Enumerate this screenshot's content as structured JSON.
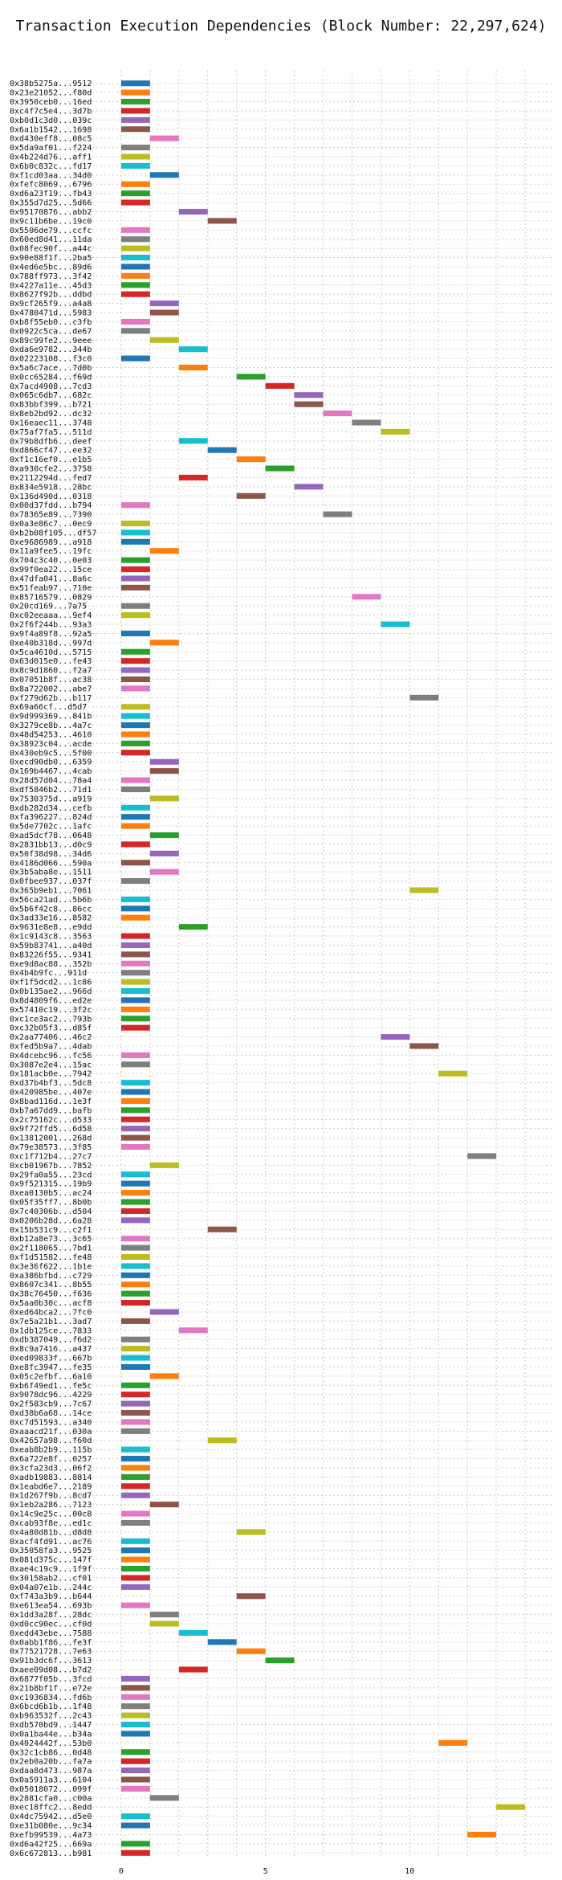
{
  "chart_data": {
    "type": "gantt",
    "title": "Transaction Execution Dependencies (Block Number: 22,297,624)",
    "xlabel": "",
    "ylabel": "",
    "xlim": [
      -1,
      15
    ],
    "xticks": [
      0,
      5,
      10
    ],
    "grid": true,
    "colors": [
      "#1f77b4",
      "#ff7f0e",
      "#2ca02c",
      "#d62728",
      "#9467bd",
      "#8c564b",
      "#e377c2",
      "#7f7f7f",
      "#bcbd22",
      "#17becf"
    ],
    "transactions": [
      {
        "label": "0x38b5275a...9512",
        "start": 0
      },
      {
        "label": "0x23e21052...f80d",
        "start": 0
      },
      {
        "label": "0x3950ceb0...16ed",
        "start": 0
      },
      {
        "label": "0xc4f7c5e4...3d7b",
        "start": 0
      },
      {
        "label": "0xb0d1c3d0...039c",
        "start": 0
      },
      {
        "label": "0x6a1b1542...1698",
        "start": 0
      },
      {
        "label": "0xd430eff8...08c5",
        "start": 1
      },
      {
        "label": "0x5da9af01...f224",
        "start": 0
      },
      {
        "label": "0x4b224d76...aff1",
        "start": 0
      },
      {
        "label": "0x6b0c832c...fd17",
        "start": 0
      },
      {
        "label": "0xf1cd03aa...34d0",
        "start": 1
      },
      {
        "label": "0xfefc8069...6796",
        "start": 0
      },
      {
        "label": "0xd6a23f19...fb43",
        "start": 0
      },
      {
        "label": "0x355d7d25...5d66",
        "start": 0
      },
      {
        "label": "0x95170876...abb2",
        "start": 2
      },
      {
        "label": "0x9c11b6be...19c0",
        "start": 3
      },
      {
        "label": "0x5506de79...ccfc",
        "start": 0
      },
      {
        "label": "0x60ed8d41...11da",
        "start": 0
      },
      {
        "label": "0x08fec90f...a44c",
        "start": 0
      },
      {
        "label": "0x90e88f1f...2ba5",
        "start": 0
      },
      {
        "label": "0x4ed6e5bc...89d6",
        "start": 0
      },
      {
        "label": "0x788ff973...3f42",
        "start": 0
      },
      {
        "label": "0x4227a11e...45d3",
        "start": 0
      },
      {
        "label": "0x8627f92b...ddbd",
        "start": 0
      },
      {
        "label": "0x9cf265f9...a4a8",
        "start": 1
      },
      {
        "label": "0x4780471d...5983",
        "start": 1
      },
      {
        "label": "0xb8f55eb0...c3fb",
        "start": 0
      },
      {
        "label": "0x0922c5ca...de67",
        "start": 0
      },
      {
        "label": "0x89c99fe2...9eee",
        "start": 1
      },
      {
        "label": "0xda6e9782...344b",
        "start": 2
      },
      {
        "label": "0x02223108...f3c0",
        "start": 0
      },
      {
        "label": "0x5a6c7ace...7d0b",
        "start": 2
      },
      {
        "label": "0x0cc65284...f69d",
        "start": 4
      },
      {
        "label": "0x7acd4908...7cd3",
        "start": 5
      },
      {
        "label": "0x065c6db7...682c",
        "start": 6
      },
      {
        "label": "0x83bbf399...b721",
        "start": 6
      },
      {
        "label": "0x8eb2bd92...dc32",
        "start": 7
      },
      {
        "label": "0x16eaec11...3748",
        "start": 8
      },
      {
        "label": "0x75af7fa5...511d",
        "start": 9
      },
      {
        "label": "0x79b8dfb6...deef",
        "start": 2
      },
      {
        "label": "0xd866cf47...ee32",
        "start": 3
      },
      {
        "label": "0xf1c16ef0...e1b5",
        "start": 4
      },
      {
        "label": "0xa930cfe2...3758",
        "start": 5
      },
      {
        "label": "0x2112294d...fed7",
        "start": 2
      },
      {
        "label": "0x834e5918...28bc",
        "start": 6
      },
      {
        "label": "0x136d490d...0318",
        "start": 4
      },
      {
        "label": "0x00d37fdd...b794",
        "start": 0
      },
      {
        "label": "0x78365e89...7390",
        "start": 7
      },
      {
        "label": "0x0a3e86c7...0ec9",
        "start": 0
      },
      {
        "label": "0xb2b08f105...df57",
        "start": 0
      },
      {
        "label": "0xe9686989...a918",
        "start": 0
      },
      {
        "label": "0x11a9fee5...19fc",
        "start": 1
      },
      {
        "label": "0x704c3c40...0e03",
        "start": 0
      },
      {
        "label": "0x99f0ea22...15ce",
        "start": 0
      },
      {
        "label": "0x47dfa041...8a6c",
        "start": 0
      },
      {
        "label": "0x51feab97...710e",
        "start": 0
      },
      {
        "label": "0x85716579...0829",
        "start": 8
      },
      {
        "label": "0x20cd169...7a75",
        "start": 0
      },
      {
        "label": "0xc02eeaaa...9ef4",
        "start": 0
      },
      {
        "label": "0x2f6f244b...93a3",
        "start": 9
      },
      {
        "label": "0x9f4a89f8...92a5",
        "start": 0
      },
      {
        "label": "0xe40b318d...997d",
        "start": 1
      },
      {
        "label": "0x5ca4610d...5715",
        "start": 0
      },
      {
        "label": "0x63d015e0...fe43",
        "start": 0
      },
      {
        "label": "0x8c9d1860...f2a7",
        "start": 0
      },
      {
        "label": "0x07051b8f...ac38",
        "start": 0
      },
      {
        "label": "0x8a722002...abe7",
        "start": 0
      },
      {
        "label": "0xf279d62b...b117",
        "start": 10
      },
      {
        "label": "0x69a66cf...d5d7",
        "start": 0
      },
      {
        "label": "0x9d999369...841b",
        "start": 0
      },
      {
        "label": "0x3279ce8b...4a7c",
        "start": 0
      },
      {
        "label": "0x48d54253...4610",
        "start": 0
      },
      {
        "label": "0x38923c04...acde",
        "start": 0
      },
      {
        "label": "0x430eb9c5...5f00",
        "start": 0
      },
      {
        "label": "0xecd90db0...6359",
        "start": 1
      },
      {
        "label": "0x169b4467...4cab",
        "start": 1
      },
      {
        "label": "0x28d57d04...78a4",
        "start": 0
      },
      {
        "label": "0xdf5846b2...71d1",
        "start": 0
      },
      {
        "label": "0x7530375d...a919",
        "start": 1
      },
      {
        "label": "0xdb282d34...cefb",
        "start": 0
      },
      {
        "label": "0xfa396227...824d",
        "start": 0
      },
      {
        "label": "0x5de7702c...1afc",
        "start": 0
      },
      {
        "label": "0xad5dcf78...0648",
        "start": 1
      },
      {
        "label": "0x2831bb13...d0c9",
        "start": 0
      },
      {
        "label": "0x50f38d98...34d6",
        "start": 1
      },
      {
        "label": "0x4186d066...590a",
        "start": 0
      },
      {
        "label": "0x3b5aba8e...1511",
        "start": 1
      },
      {
        "label": "0x0fbee937...037f",
        "start": 0
      },
      {
        "label": "0x365b9eb1...7061",
        "start": 10
      },
      {
        "label": "0x56ca21ad...5b6b",
        "start": 0
      },
      {
        "label": "0x5b6f42c8...86cc",
        "start": 0
      },
      {
        "label": "0x3ad33e16...8582",
        "start": 0
      },
      {
        "label": "0x9631e8e8...e9dd",
        "start": 2
      },
      {
        "label": "0x1c9143c8...3563",
        "start": 0
      },
      {
        "label": "0x59b83741...a40d",
        "start": 0
      },
      {
        "label": "0x83226f55...9341",
        "start": 0
      },
      {
        "label": "0xe9d8ac88...352b",
        "start": 0
      },
      {
        "label": "0x4b4b9fc...911d",
        "start": 0
      },
      {
        "label": "0xf1f5dcd2...1c86",
        "start": 0
      },
      {
        "label": "0x0b135ae2...966d",
        "start": 0
      },
      {
        "label": "0x8d4809f6...ed2e",
        "start": 0
      },
      {
        "label": "0x57410c19...3f2c",
        "start": 0
      },
      {
        "label": "0xc1ce3ac2...793b",
        "start": 0
      },
      {
        "label": "0xc32b05f3...d85f",
        "start": 0
      },
      {
        "label": "0x2aa77406...46c2",
        "start": 9
      },
      {
        "label": "0xfed5b9a7...4dab",
        "start": 10
      },
      {
        "label": "0x4dcebc96...fc56",
        "start": 0
      },
      {
        "label": "0x3087e2e4...15ac",
        "start": 0
      },
      {
        "label": "0x181acb0e...7942",
        "start": 11
      },
      {
        "label": "0xd37b4bf3...5dc8",
        "start": 0
      },
      {
        "label": "0x420985be...407e",
        "start": 0
      },
      {
        "label": "0x8bad116d...1e3f",
        "start": 0
      },
      {
        "label": "0xb7a67dd9...bafb",
        "start": 0
      },
      {
        "label": "0x2c75162c...d533",
        "start": 0
      },
      {
        "label": "0x9f72ffd5...6d58",
        "start": 0
      },
      {
        "label": "0x13812001...268d",
        "start": 0
      },
      {
        "label": "0x79e38573...3f85",
        "start": 0
      },
      {
        "label": "0xc1f712b4...27c7",
        "start": 12
      },
      {
        "label": "0xcb01967b...7852",
        "start": 1
      },
      {
        "label": "0x29fa0a55...23cd",
        "start": 0
      },
      {
        "label": "0x9f521315...19b9",
        "start": 0
      },
      {
        "label": "0xea0130b5...ac24",
        "start": 0
      },
      {
        "label": "0x05f35ff7...8b0b",
        "start": 0
      },
      {
        "label": "0x7c40306b...d504",
        "start": 0
      },
      {
        "label": "0x0206b28d...6a28",
        "start": 0
      },
      {
        "label": "0x15b531c9...c2f1",
        "start": 3
      },
      {
        "label": "0xb12a8e73...3c65",
        "start": 0
      },
      {
        "label": "0x2f118065...7bd1",
        "start": 0
      },
      {
        "label": "0xf1d51582...fe48",
        "start": 0
      },
      {
        "label": "0x3e36f622...1b1e",
        "start": 0
      },
      {
        "label": "0xa386bfbd...c729",
        "start": 0
      },
      {
        "label": "0x8607c341...8b55",
        "start": 0
      },
      {
        "label": "0x38c76450...f636",
        "start": 0
      },
      {
        "label": "0x5aa0b30c...acf8",
        "start": 0
      },
      {
        "label": "0xed64bca2...7fc0",
        "start": 1
      },
      {
        "label": "0x7e5a21b1...3ad7",
        "start": 0
      },
      {
        "label": "0x1db125ce...7833",
        "start": 2
      },
      {
        "label": "0xdb387049...f6d2",
        "start": 0
      },
      {
        "label": "0x8c9a7416...a437",
        "start": 0
      },
      {
        "label": "0xed09833f...667b",
        "start": 0
      },
      {
        "label": "0xe8fc3947...fe35",
        "start": 0
      },
      {
        "label": "0x05c2efbf...6a10",
        "start": 1
      },
      {
        "label": "0xb6f49ed1...fe5c",
        "start": 0
      },
      {
        "label": "0x9078dc96...4229",
        "start": 0
      },
      {
        "label": "0x2f583cb9...7c67",
        "start": 0
      },
      {
        "label": "0xd38b6a68...14ce",
        "start": 0
      },
      {
        "label": "0xc7d51593...a340",
        "start": 0
      },
      {
        "label": "0xaaacd21f...030a",
        "start": 0
      },
      {
        "label": "0x42657a98...f60d",
        "start": 3
      },
      {
        "label": "0xeab8b2b9...115b",
        "start": 0
      },
      {
        "label": "0x6a722e8f...0257",
        "start": 0
      },
      {
        "label": "0x3cfa23d3...06f2",
        "start": 0
      },
      {
        "label": "0xadb19883...8814",
        "start": 0
      },
      {
        "label": "0x1eabd6e7...2189",
        "start": 0
      },
      {
        "label": "0x1d267f9b...8cd7",
        "start": 0
      },
      {
        "label": "0x1eb2a286...7123",
        "start": 1
      },
      {
        "label": "0x14c9e25c...00c8",
        "start": 0
      },
      {
        "label": "0xcab93f8e...ed1c",
        "start": 0
      },
      {
        "label": "0x4a80d81b...d8d8",
        "start": 4
      },
      {
        "label": "0xacf4fd91...ac76",
        "start": 0
      },
      {
        "label": "0x35058fa3...9525",
        "start": 0
      },
      {
        "label": "0x081d375c...147f",
        "start": 0
      },
      {
        "label": "0xae4c19c9...1f9f",
        "start": 0
      },
      {
        "label": "0x30158ab2...cf01",
        "start": 0
      },
      {
        "label": "0x04a07e1b...244c",
        "start": 0
      },
      {
        "label": "0xf743a3b9...b644",
        "start": 4
      },
      {
        "label": "0xe613ea54...693b",
        "start": 0
      },
      {
        "label": "0x1dd3a28f...28dc",
        "start": 1
      },
      {
        "label": "0xd0cc90ec...cf0d",
        "start": 1
      },
      {
        "label": "0xedd43ebe...7588",
        "start": 2
      },
      {
        "label": "0x0abb1f86...fe3f",
        "start": 3
      },
      {
        "label": "0x77521728...7e63",
        "start": 4
      },
      {
        "label": "0x91b3dc6f...3613",
        "start": 5
      },
      {
        "label": "0xaee09d08...b7d2",
        "start": 2
      },
      {
        "label": "0x6877f05b...3fcd",
        "start": 0
      },
      {
        "label": "0x21b8bf1f...e72e",
        "start": 0
      },
      {
        "label": "0xc1936834...fd6b",
        "start": 0
      },
      {
        "label": "0x6bcd6b1b...1f48",
        "start": 0
      },
      {
        "label": "0xb963532f...2c43",
        "start": 0
      },
      {
        "label": "0xdb570bd9...1447",
        "start": 0
      },
      {
        "label": "0x0a1ba44e...b34a",
        "start": 0
      },
      {
        "label": "0x4024442f...53b0",
        "start": 11
      },
      {
        "label": "0x32c1cb86...0d48",
        "start": 0
      },
      {
        "label": "0x2eb0a20b...fa7a",
        "start": 0
      },
      {
        "label": "0xdaa8d473...987a",
        "start": 0
      },
      {
        "label": "0x0a5911a3...6104",
        "start": 0
      },
      {
        "label": "0x05018072...099f",
        "start": 0
      },
      {
        "label": "0x2881cfa0...c00a",
        "start": 1
      },
      {
        "label": "0xec18ffc2...8edd",
        "start": 13
      },
      {
        "label": "0x4dc75942...d5e0",
        "start": 0
      },
      {
        "label": "0xe31b080e...9c34",
        "start": 0
      },
      {
        "label": "0xefb99539...4a73",
        "start": 12
      },
      {
        "label": "0xd6a42f25...669a",
        "start": 0
      },
      {
        "label": "0x6c672813...b981",
        "start": 0
      }
    ]
  }
}
